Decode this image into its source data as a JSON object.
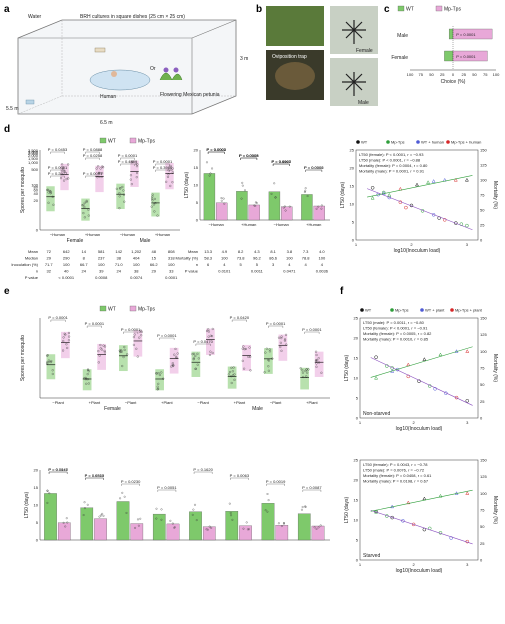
{
  "panels": {
    "a": {
      "letter": "a",
      "water_label": "Water",
      "brh_label": "BRH cultures in square dishes (25 cm × 25 cm)",
      "human_label": "Human",
      "or_label": "Or",
      "plant_label": "Flowering Mexican petunia",
      "dim_height": "3 m",
      "dim_width": "6.5 m",
      "dim_depth": "5.5 m"
    },
    "b": {
      "letter": "b",
      "female_label": "Female",
      "male_label": "Male",
      "trap_label": "Oviposition trap"
    },
    "c": {
      "letter": "c"
    },
    "d": {
      "letter": "d"
    },
    "e": {
      "letter": "e"
    },
    "f": {
      "letter": "f"
    }
  },
  "chart_data": [
    {
      "id": "c",
      "type": "bar",
      "categories": [
        "Male",
        "Female"
      ],
      "series": [
        {
          "name": "WT",
          "color": "#7ec96b",
          "values": [
            -9,
            -20
          ]
        },
        {
          "name": "Mp-Tps",
          "color": "#e8a8d8",
          "values": [
            91,
            80
          ]
        }
      ],
      "annotations": [
        "P = 0.0001",
        "P = 0.0001"
      ],
      "xlabel": "Choice (%)",
      "xticks": [
        "100",
        "75",
        "50",
        "25",
        "0",
        "25",
        "50",
        "75",
        "100"
      ],
      "xlim": [
        -100,
        100
      ]
    },
    {
      "id": "d-spores",
      "type": "scatter",
      "legend": [
        "WT",
        "Mp-Tps"
      ],
      "ylabel": "Spores per mosquito",
      "yticks": [
        "0",
        "20",
        "40",
        "60",
        "80",
        "100",
        "500",
        "1,000",
        "1,500",
        "2,000",
        "2,500",
        "3,000",
        "3,500"
      ],
      "groups": [
        {
          "sex": "Female",
          "condition": "−Human",
          "wt_median": 29,
          "tps_median": 290
        },
        {
          "sex": "Female",
          "condition": "+Human",
          "wt_median": 8,
          "tps_median": 237
        },
        {
          "sex": "Male",
          "condition": "−Human",
          "wt_median": 38,
          "tps_median": 404
        },
        {
          "sex": "Male",
          "condition": "+Human",
          "wt_median": 15,
          "tps_median": 318
        }
      ],
      "p_values": [
        "P = 0.0453",
        "P = 0.0258",
        "P = 0.4509",
        "P = 0.3986",
        "P = 0.2977",
        "P = 0.0888",
        "P = 0.0001",
        "P = 0.0001",
        "P = 0.0001",
        "P = 0.0001"
      ],
      "table": {
        "row_labels": [
          "Mean",
          "Median",
          "Inoculation (%)",
          "n",
          "P value"
        ],
        "columns": [
          "−Human WT",
          "−Human Mp-Tps",
          "+Human WT",
          "+Human Mp-Tps",
          "−Human WT",
          "−Human Mp-Tps",
          "+Human WT",
          "+Human Mp-Tps"
        ],
        "rows": [
          [
            "72",
            "642",
            "14",
            "581",
            "142",
            "1,202",
            "48",
            "808"
          ],
          [
            "29",
            "290",
            "8",
            "237",
            "38",
            "404",
            "15",
            "318"
          ],
          [
            "71.7",
            "100",
            "66.7",
            "100",
            "71.0",
            "100",
            "66.2",
            "100"
          ],
          [
            "32",
            "40",
            "24",
            "39",
            "24",
            "38",
            "29",
            "33"
          ],
          [
            "",
            "< 0.0001",
            "",
            "0.0008",
            "",
            "0.0074",
            "",
            "0.0001"
          ]
        ]
      }
    },
    {
      "id": "d-lt50",
      "type": "bar",
      "ylabel": "LT50 (days)",
      "yticks": [
        "0",
        "5",
        "10",
        "15",
        "20"
      ],
      "ylim": [
        0,
        20
      ],
      "categories": [
        "−Human",
        "+Human",
        "−Human",
        "+Human"
      ],
      "series": [
        {
          "name": "WT",
          "color": "#7ec96b",
          "values": [
            13.3,
            8.2,
            8.1,
            7.3
          ]
        },
        {
          "name": "Mp-Tps",
          "color": "#e8a8d8",
          "values": [
            4.9,
            4.3,
            3.8,
            4.0
          ]
        }
      ],
      "p_values": [
        "P = 0.0003",
        "P = 0.0003",
        "P = 0.4443",
        "P = 0.0002",
        "P = 0.0022",
        "P = 0.0008",
        "P = 0.0001",
        "P = 0.0006",
        "P = 0.0001",
        "P = 0.0006",
        "P = 0.0007"
      ],
      "table": {
        "row_labels": [
          "Mean",
          "Mortality (%)",
          "n",
          "P value"
        ],
        "rows": [
          [
            "13.3",
            "4.9",
            "8.2",
            "4.3",
            "8.1",
            "3.8",
            "7.3",
            "4.0"
          ],
          [
            "58.3",
            "100",
            "73.8",
            "96.2",
            "86.6",
            "100",
            "78.8",
            "100"
          ],
          [
            "6",
            "4",
            "5",
            "5",
            "3",
            "4",
            "4",
            "4"
          ],
          [
            "",
            "0.0101",
            "",
            "0.0011",
            "",
            "0.0471",
            "",
            "0.0036"
          ]
        ]
      }
    },
    {
      "id": "d-regression",
      "type": "scatter",
      "legend": [
        "WT",
        "Mp-Tps",
        "WT + human",
        "Mp-Tps + human"
      ],
      "legend_colors": [
        "#111111",
        "#2e9e3a",
        "#4f5bd5",
        "#d62728"
      ],
      "stats": [
        "LT50 (female): P < 0.0001, r = −0.93",
        "LT50 (male): P < 0.0001, r = −0.88",
        "Mortality (female): P = 0.0004, r = 0.80",
        "Mortality (male): P = 0.0001, r = 0.91"
      ],
      "xlabel": "log10(Inoculum load)",
      "ylabel": "LT50 (days)",
      "y2label": "Mortality (%)",
      "xticks": [
        "1",
        "2",
        "3"
      ],
      "yticks": [
        "0",
        "5",
        "10",
        "15",
        "20",
        "25"
      ],
      "y2ticks": [
        "0",
        "25",
        "50",
        "75",
        "100",
        "125",
        "150"
      ],
      "xlim": [
        1,
        3.2
      ],
      "ylim": [
        0,
        25
      ],
      "y2lim": [
        0,
        150
      ],
      "points_lt50": [
        [
          1.3,
          14.5
        ],
        [
          1.5,
          13.2
        ],
        [
          1.6,
          11.8
        ],
        [
          1.8,
          10.5
        ],
        [
          2.0,
          9.6
        ],
        [
          2.2,
          8.1
        ],
        [
          2.4,
          7.0
        ],
        [
          2.6,
          5.6
        ],
        [
          2.8,
          4.7
        ],
        [
          3.0,
          4.0
        ],
        [
          1.4,
          12.6
        ],
        [
          1.9,
          9.0
        ],
        [
          2.5,
          6.1
        ],
        [
          2.9,
          4.4
        ]
      ],
      "points_mortality": [
        [
          1.3,
          70
        ],
        [
          1.5,
          78
        ],
        [
          1.8,
          85
        ],
        [
          2.1,
          92
        ],
        [
          2.3,
          96
        ],
        [
          2.6,
          100
        ],
        [
          2.8,
          100
        ],
        [
          3.0,
          100
        ],
        [
          1.6,
          75
        ],
        [
          2.4,
          98
        ]
      ]
    },
    {
      "id": "e-spores",
      "type": "scatter",
      "legend": [
        "WT",
        "Mp-Tps"
      ],
      "ylabel": "Spores per mosquito",
      "groups": [
        {
          "sex": "Female",
          "state": "Non-starved",
          "condition": "−Plant",
          "wt_median": 29,
          "tps_median": 290
        },
        {
          "sex": "Female",
          "state": "Non-starved",
          "condition": "+Plant",
          "wt_median": 6,
          "tps_median": 84
        },
        {
          "sex": "Female",
          "state": "Starved",
          "condition": "−Plant",
          "wt_median": 74,
          "tps_median": 342
        },
        {
          "sex": "Female",
          "state": "Starved",
          "condition": "+Plant",
          "wt_median": 6,
          "tps_median": 56
        },
        {
          "sex": "Male",
          "state": "Non-starved",
          "condition": "−Plant",
          "wt_median": 38,
          "tps_median": 404
        },
        {
          "sex": "Male",
          "state": "Non-starved",
          "condition": "+Plant",
          "wt_median": 8,
          "tps_median": 76
        },
        {
          "sex": "Male",
          "state": "Starved",
          "condition": "−Plant",
          "wt_median": 54,
          "tps_median": 220
        },
        {
          "sex": "Male",
          "state": "Starved",
          "condition": "+Plant",
          "wt_median": 7,
          "tps_median": 38
        }
      ],
      "p_values": [
        "P = 0.0001",
        "P = 0.0001",
        "P = 0.0001",
        "P = 0.0001",
        "P = 0.0470",
        "P = 0.0420",
        "P = 0.0001",
        "P = 0.0001"
      ]
    },
    {
      "id": "e-lt50",
      "type": "bar",
      "ylabel": "LT50 (days)",
      "yticks": [
        "0",
        "5",
        "10",
        "15",
        "20"
      ],
      "ylim": [
        0,
        20
      ],
      "series": [
        {
          "name": "WT",
          "color": "#7ec96b",
          "values": [
            13.3,
            9.2,
            11.0,
            7.4,
            8.1,
            8.2,
            10.5,
            7.5
          ]
        },
        {
          "name": "Mp-Tps",
          "color": "#e8a8d8",
          "values": [
            4.9,
            6.1,
            4.7,
            4.6,
            3.8,
            4.1,
            4.2,
            4.0
          ]
        }
      ],
      "p_values": [
        "P = 0.0545",
        "P = 0.6510",
        "P = 0.0230",
        "P = 0.0051",
        "P = 0.1620",
        "P = 0.0063",
        "P = 0.0019",
        "P = 0.0087",
        "P = 0.0447",
        "P = 0.0333"
      ]
    },
    {
      "id": "f-nonstarved",
      "type": "scatter",
      "legend": [
        "WT",
        "Mp-Tps",
        "WT + plant",
        "Mp-Tps + plant"
      ],
      "legend_colors": [
        "#111111",
        "#2e9e3a",
        "#4f5bd5",
        "#d62728"
      ],
      "stats": [
        "LT50 (male): P = 0.0011, r = −0.80",
        "LT50 (female): P < 0.0001, r = −0.91",
        "Mortality (female): P = 0.0005, r = 0.82",
        "Mortality (male): P = 0.0010, r = 0.85"
      ],
      "state_label": "Non-starved",
      "xlabel": "log10(Inoculum load)",
      "ylabel": "LT50 (days)",
      "y2label": "Mortality (%)",
      "xticks": [
        "1",
        "2",
        "3"
      ],
      "yticks": [
        "0",
        "5",
        "10",
        "15",
        "20",
        "25"
      ],
      "y2ticks": [
        "0",
        "25",
        "50",
        "75",
        "100",
        "125",
        "150"
      ],
      "xlim": [
        1,
        3.2
      ],
      "ylim": [
        0,
        25
      ],
      "y2lim": [
        0,
        150
      ],
      "points_lt50": [
        [
          1.3,
          15.2
        ],
        [
          1.5,
          13.0
        ],
        [
          1.7,
          12.1
        ],
        [
          1.9,
          10.4
        ],
        [
          2.1,
          9.2
        ],
        [
          2.3,
          8.0
        ],
        [
          2.6,
          6.2
        ],
        [
          2.8,
          5.1
        ],
        [
          3.0,
          4.3
        ],
        [
          1.6,
          12.5
        ],
        [
          2.4,
          7.3
        ]
      ],
      "points_mortality": [
        [
          1.3,
          60
        ],
        [
          1.6,
          70
        ],
        [
          1.9,
          80
        ],
        [
          2.2,
          88
        ],
        [
          2.5,
          95
        ],
        [
          2.8,
          100
        ],
        [
          3.0,
          100
        ]
      ]
    },
    {
      "id": "f-starved",
      "type": "scatter",
      "stats": [
        "LT50 (female): P = 0.0043, r = −0.78",
        "LT50 (male): P = 0.0076, r = −0.72",
        "Mortality (female): P = 0.0408, r = 0.61",
        "Mortality (male): P = 0.0198, r = 0.67"
      ],
      "state_label": "Starved",
      "xlabel": "log10(Inoculum load)",
      "ylabel": "LT50 (days)",
      "y2label": "Mortality (%)",
      "xticks": [
        "1",
        "2",
        "3"
      ],
      "yticks": [
        "0",
        "5",
        "10",
        "15",
        "20",
        "25"
      ],
      "y2ticks": [
        "0",
        "25",
        "50",
        "75",
        "100",
        "125",
        "150"
      ],
      "xlim": [
        1,
        3.2
      ],
      "ylim": [
        0,
        25
      ],
      "y2lim": [
        0,
        150
      ],
      "points_lt50": [
        [
          1.3,
          12.1
        ],
        [
          1.5,
          11.0
        ],
        [
          1.8,
          9.8
        ],
        [
          2.0,
          8.9
        ],
        [
          2.2,
          7.6
        ],
        [
          2.5,
          6.8
        ],
        [
          2.7,
          5.5
        ],
        [
          3.0,
          4.6
        ],
        [
          1.6,
          10.6
        ],
        [
          2.3,
          7.9
        ]
      ],
      "points_mortality": [
        [
          1.3,
          72
        ],
        [
          1.6,
          80
        ],
        [
          1.9,
          86
        ],
        [
          2.2,
          92
        ],
        [
          2.5,
          96
        ],
        [
          2.8,
          100
        ],
        [
          3.0,
          100
        ]
      ]
    }
  ]
}
